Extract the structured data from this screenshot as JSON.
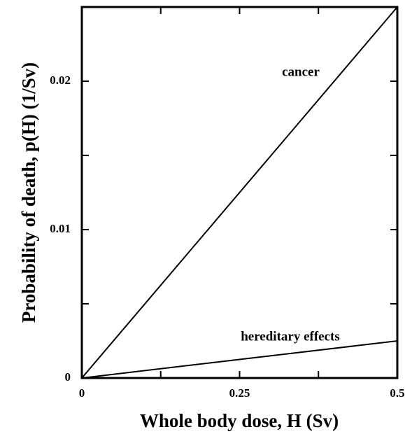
{
  "chart_data": {
    "type": "line",
    "x_label": "Whole body dose, H (Sv)",
    "y_label": "Probability of death, p(H) (1/Sv)",
    "x": [
      0,
      0.5
    ],
    "series": [
      {
        "name": "cancer",
        "color": "#000000",
        "values": [
          0,
          0.025
        ]
      },
      {
        "name": "hereditary effects",
        "color": "#000000",
        "values": [
          0,
          0.0025
        ]
      }
    ],
    "xlim": [
      0,
      0.5
    ],
    "xticks": [
      0,
      0.25,
      0.5
    ],
    "x_minor_ticks": [
      0.125,
      0.375
    ],
    "ylim": [
      0,
      0.025
    ],
    "yticks": [
      0,
      0.01,
      0.02
    ],
    "y_minor_ticks": [
      0.005,
      0.015
    ],
    "grid": false
  }
}
